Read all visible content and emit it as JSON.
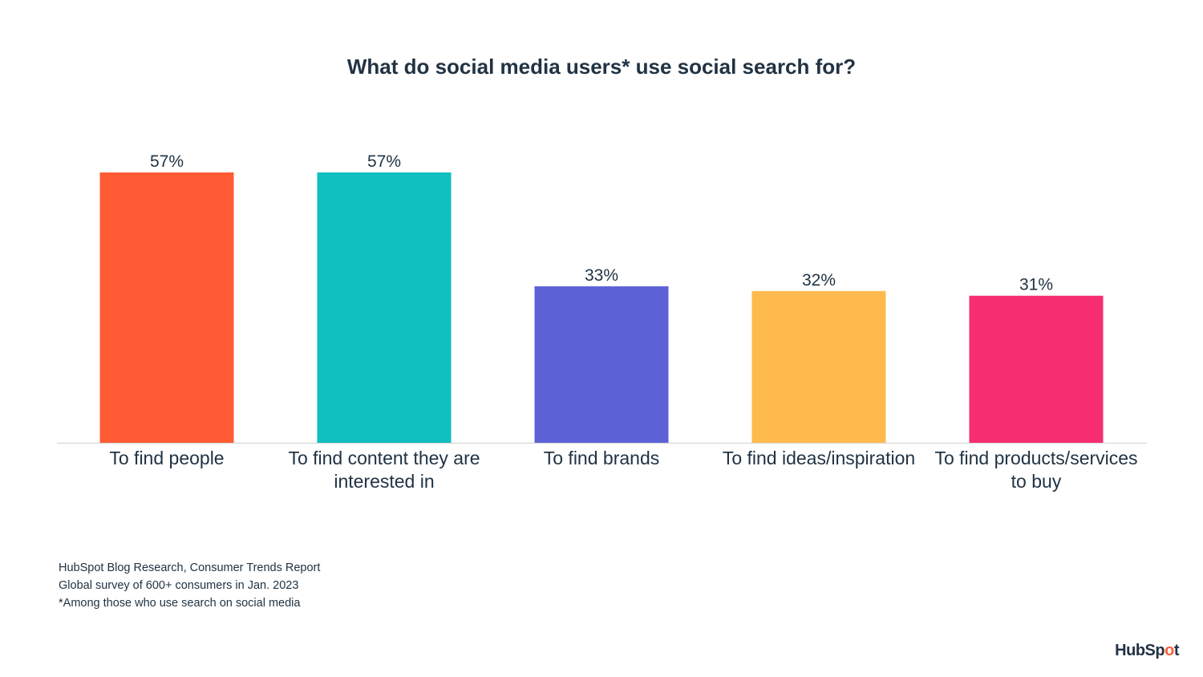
{
  "chart_data": {
    "type": "bar",
    "title": "What do social media users* use social search for?",
    "categories": [
      "To find people",
      "To find content they are interested in",
      "To find brands",
      "To find ideas/inspiration",
      "To find products/services to buy"
    ],
    "values": [
      57,
      57,
      33,
      32,
      31
    ],
    "value_labels": [
      "57%",
      "57%",
      "33%",
      "32%",
      "31%"
    ],
    "colors": [
      "#ff5c35",
      "#10bfbf",
      "#5c62d6",
      "#ffba4d",
      "#f62d70"
    ],
    "xlabel": "",
    "ylabel": "",
    "ylim": [
      0,
      60
    ],
    "grid": false,
    "unit": "%"
  },
  "footnotes": {
    "source": "HubSpot Blog Research, Consumer Trends Report",
    "survey": "Global survey of 600+ consumers in Jan. 2023",
    "note": "*Among those who use search on social media"
  },
  "logo": {
    "text_main": "HubSp",
    "text_sprocket": "o",
    "text_end": "t"
  }
}
